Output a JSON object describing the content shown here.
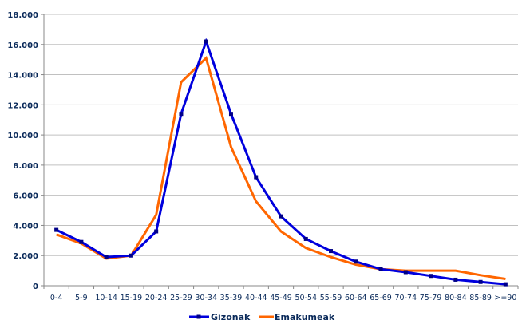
{
  "chart_data": {
    "type": "line",
    "title": "",
    "xlabel": "",
    "ylabel": "",
    "ylim": [
      0,
      18000
    ],
    "yticks": [
      "0",
      "2.000",
      "4.000",
      "6.000",
      "8.000",
      "10.000",
      "12.000",
      "14.000",
      "16.000",
      "18.000"
    ],
    "grid": true,
    "legend_position": "bottom",
    "categories": [
      "0-4",
      "5-9",
      "10-14",
      "15-19",
      "20-24",
      "25-29",
      "30-34",
      "35-39",
      "40-44",
      "45-49",
      "50-54",
      "55-59",
      "60-64",
      "65-69",
      "70-74",
      "75-79",
      "80-84",
      "85-89",
      ">=90"
    ],
    "series": [
      {
        "name": "Gizonak",
        "color": "#0000dd",
        "marker": "square",
        "values": [
          3700,
          2900,
          1900,
          2000,
          3600,
          11400,
          16200,
          11400,
          7200,
          4600,
          3100,
          2300,
          1600,
          1100,
          900,
          650,
          400,
          250,
          100
        ]
      },
      {
        "name": "Emakumeak",
        "color": "#ff6600",
        "marker": "none",
        "values": [
          3400,
          2800,
          1800,
          2000,
          4700,
          13500,
          15100,
          9200,
          5600,
          3600,
          2500,
          1900,
          1400,
          1100,
          1000,
          1000,
          1000,
          700,
          450
        ]
      }
    ]
  },
  "legend": {
    "items": [
      {
        "label": "Gizonak",
        "color": "#0000dd"
      },
      {
        "label": "Emakumeak",
        "color": "#ff6600"
      }
    ]
  },
  "colors": {
    "axis": "#888888",
    "grid": "#c0c0c0",
    "text": "#0a2a5a"
  }
}
